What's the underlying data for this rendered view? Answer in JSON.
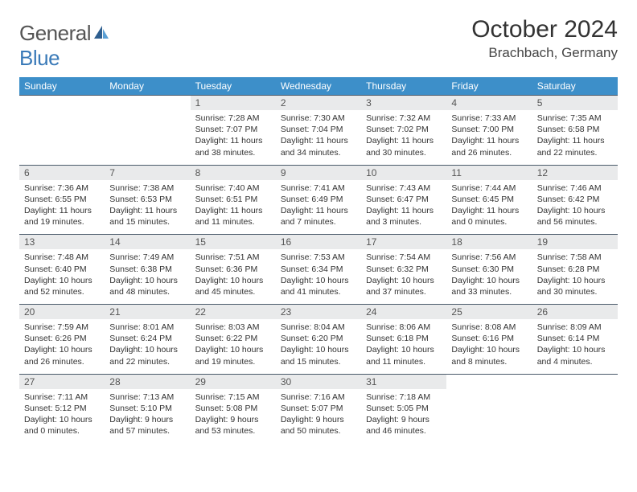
{
  "brand": {
    "part1": "General",
    "part2": "Blue"
  },
  "title": "October 2024",
  "location": "Brachbach, Germany",
  "colors": {
    "header_bg": "#3d8fc9",
    "header_text": "#ffffff",
    "daynum_bg": "#e9eaeb",
    "rule": "#4a5a6a",
    "logo_blue": "#3a7ab8",
    "text": "#333333"
  },
  "typography": {
    "title_fontsize": 30,
    "location_fontsize": 17,
    "dow_fontsize": 12,
    "body_fontsize": 10.5
  },
  "dow": [
    "Sunday",
    "Monday",
    "Tuesday",
    "Wednesday",
    "Thursday",
    "Friday",
    "Saturday"
  ],
  "weeks": [
    [
      null,
      null,
      {
        "n": "1",
        "sunrise": "7:28 AM",
        "sunset": "7:07 PM",
        "dl": "11 hours and 38 minutes."
      },
      {
        "n": "2",
        "sunrise": "7:30 AM",
        "sunset": "7:04 PM",
        "dl": "11 hours and 34 minutes."
      },
      {
        "n": "3",
        "sunrise": "7:32 AM",
        "sunset": "7:02 PM",
        "dl": "11 hours and 30 minutes."
      },
      {
        "n": "4",
        "sunrise": "7:33 AM",
        "sunset": "7:00 PM",
        "dl": "11 hours and 26 minutes."
      },
      {
        "n": "5",
        "sunrise": "7:35 AM",
        "sunset": "6:58 PM",
        "dl": "11 hours and 22 minutes."
      }
    ],
    [
      {
        "n": "6",
        "sunrise": "7:36 AM",
        "sunset": "6:55 PM",
        "dl": "11 hours and 19 minutes."
      },
      {
        "n": "7",
        "sunrise": "7:38 AM",
        "sunset": "6:53 PM",
        "dl": "11 hours and 15 minutes."
      },
      {
        "n": "8",
        "sunrise": "7:40 AM",
        "sunset": "6:51 PM",
        "dl": "11 hours and 11 minutes."
      },
      {
        "n": "9",
        "sunrise": "7:41 AM",
        "sunset": "6:49 PM",
        "dl": "11 hours and 7 minutes."
      },
      {
        "n": "10",
        "sunrise": "7:43 AM",
        "sunset": "6:47 PM",
        "dl": "11 hours and 3 minutes."
      },
      {
        "n": "11",
        "sunrise": "7:44 AM",
        "sunset": "6:45 PM",
        "dl": "11 hours and 0 minutes."
      },
      {
        "n": "12",
        "sunrise": "7:46 AM",
        "sunset": "6:42 PM",
        "dl": "10 hours and 56 minutes."
      }
    ],
    [
      {
        "n": "13",
        "sunrise": "7:48 AM",
        "sunset": "6:40 PM",
        "dl": "10 hours and 52 minutes."
      },
      {
        "n": "14",
        "sunrise": "7:49 AM",
        "sunset": "6:38 PM",
        "dl": "10 hours and 48 minutes."
      },
      {
        "n": "15",
        "sunrise": "7:51 AM",
        "sunset": "6:36 PM",
        "dl": "10 hours and 45 minutes."
      },
      {
        "n": "16",
        "sunrise": "7:53 AM",
        "sunset": "6:34 PM",
        "dl": "10 hours and 41 minutes."
      },
      {
        "n": "17",
        "sunrise": "7:54 AM",
        "sunset": "6:32 PM",
        "dl": "10 hours and 37 minutes."
      },
      {
        "n": "18",
        "sunrise": "7:56 AM",
        "sunset": "6:30 PM",
        "dl": "10 hours and 33 minutes."
      },
      {
        "n": "19",
        "sunrise": "7:58 AM",
        "sunset": "6:28 PM",
        "dl": "10 hours and 30 minutes."
      }
    ],
    [
      {
        "n": "20",
        "sunrise": "7:59 AM",
        "sunset": "6:26 PM",
        "dl": "10 hours and 26 minutes."
      },
      {
        "n": "21",
        "sunrise": "8:01 AM",
        "sunset": "6:24 PM",
        "dl": "10 hours and 22 minutes."
      },
      {
        "n": "22",
        "sunrise": "8:03 AM",
        "sunset": "6:22 PM",
        "dl": "10 hours and 19 minutes."
      },
      {
        "n": "23",
        "sunrise": "8:04 AM",
        "sunset": "6:20 PM",
        "dl": "10 hours and 15 minutes."
      },
      {
        "n": "24",
        "sunrise": "8:06 AM",
        "sunset": "6:18 PM",
        "dl": "10 hours and 11 minutes."
      },
      {
        "n": "25",
        "sunrise": "8:08 AM",
        "sunset": "6:16 PM",
        "dl": "10 hours and 8 minutes."
      },
      {
        "n": "26",
        "sunrise": "8:09 AM",
        "sunset": "6:14 PM",
        "dl": "10 hours and 4 minutes."
      }
    ],
    [
      {
        "n": "27",
        "sunrise": "7:11 AM",
        "sunset": "5:12 PM",
        "dl": "10 hours and 0 minutes."
      },
      {
        "n": "28",
        "sunrise": "7:13 AM",
        "sunset": "5:10 PM",
        "dl": "9 hours and 57 minutes."
      },
      {
        "n": "29",
        "sunrise": "7:15 AM",
        "sunset": "5:08 PM",
        "dl": "9 hours and 53 minutes."
      },
      {
        "n": "30",
        "sunrise": "7:16 AM",
        "sunset": "5:07 PM",
        "dl": "9 hours and 50 minutes."
      },
      {
        "n": "31",
        "sunrise": "7:18 AM",
        "sunset": "5:05 PM",
        "dl": "9 hours and 46 minutes."
      },
      null,
      null
    ]
  ],
  "labels": {
    "sunrise": "Sunrise:",
    "sunset": "Sunset:",
    "daylight": "Daylight:"
  }
}
